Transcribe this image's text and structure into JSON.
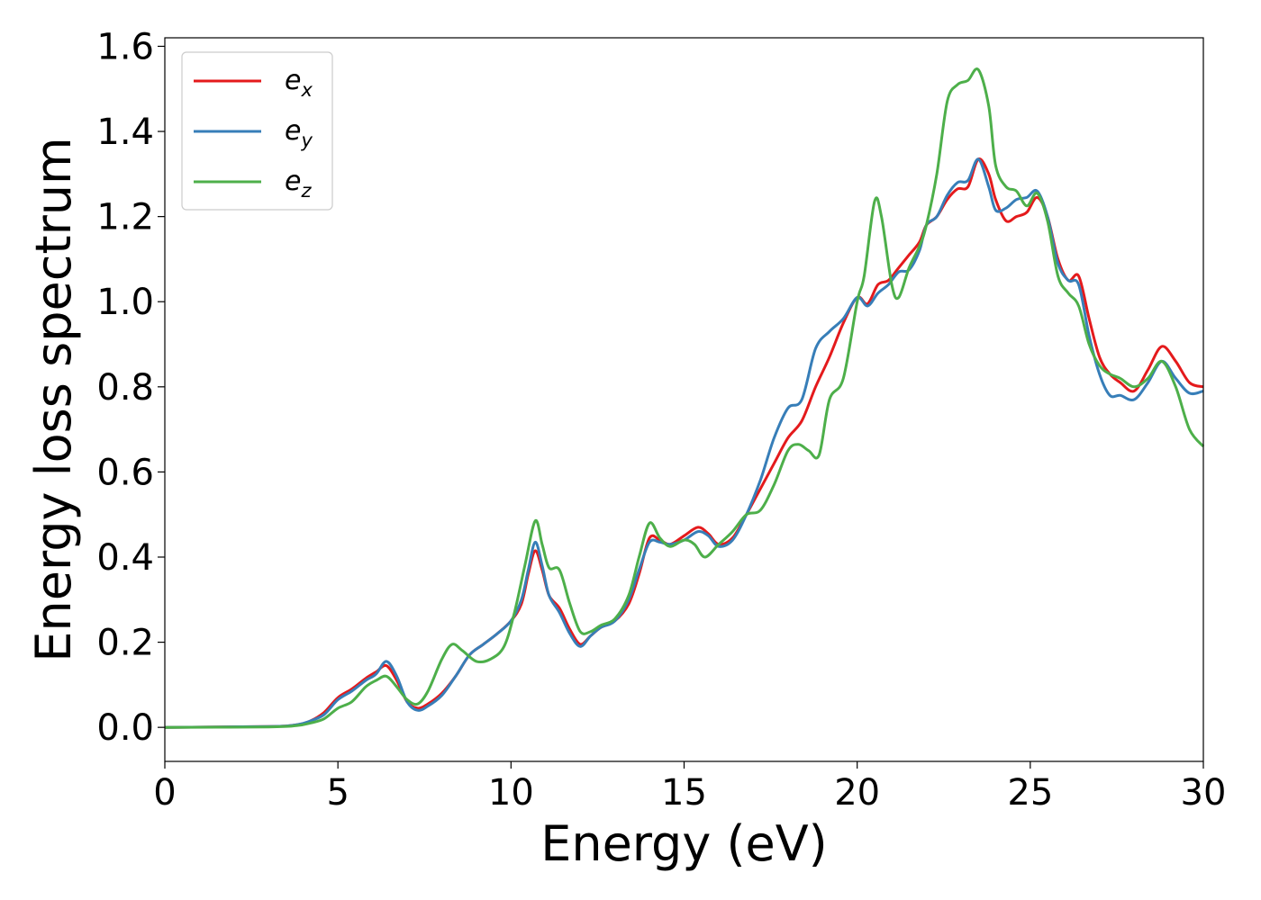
{
  "chart_data": {
    "type": "line",
    "title": "",
    "xlabel": "Energy (eV)",
    "ylabel": "Energy loss spectrum",
    "xlim": [
      0,
      30
    ],
    "ylim": [
      -0.08,
      1.62
    ],
    "xticks": [
      0,
      5,
      10,
      15,
      20,
      25,
      30
    ],
    "yticks": [
      0.0,
      0.2,
      0.4,
      0.6,
      0.8,
      1.0,
      1.2,
      1.4,
      1.6
    ],
    "ytick_labels": [
      "0.0",
      "0.2",
      "0.4",
      "0.6",
      "0.8",
      "1.0",
      "1.2",
      "1.4",
      "1.6"
    ],
    "grid": false,
    "legend_position": "top-left",
    "series": [
      {
        "name": "e_x",
        "label_base": "e",
        "label_sub": "x",
        "color": "#e41a1c",
        "points": [
          [
            0,
            0.0
          ],
          [
            3,
            0.002
          ],
          [
            3.8,
            0.006
          ],
          [
            4.2,
            0.015
          ],
          [
            4.6,
            0.035
          ],
          [
            5.0,
            0.07
          ],
          [
            5.4,
            0.09
          ],
          [
            5.8,
            0.115
          ],
          [
            6.1,
            0.13
          ],
          [
            6.4,
            0.145
          ],
          [
            6.7,
            0.11
          ],
          [
            7.0,
            0.06
          ],
          [
            7.3,
            0.045
          ],
          [
            7.6,
            0.055
          ],
          [
            8.0,
            0.08
          ],
          [
            8.4,
            0.12
          ],
          [
            8.8,
            0.17
          ],
          [
            9.2,
            0.195
          ],
          [
            9.6,
            0.22
          ],
          [
            10.0,
            0.25
          ],
          [
            10.3,
            0.29
          ],
          [
            10.5,
            0.36
          ],
          [
            10.7,
            0.415
          ],
          [
            10.9,
            0.37
          ],
          [
            11.1,
            0.31
          ],
          [
            11.4,
            0.28
          ],
          [
            11.7,
            0.23
          ],
          [
            12.0,
            0.195
          ],
          [
            12.3,
            0.215
          ],
          [
            12.6,
            0.235
          ],
          [
            13.0,
            0.25
          ],
          [
            13.4,
            0.29
          ],
          [
            13.7,
            0.36
          ],
          [
            14.0,
            0.445
          ],
          [
            14.3,
            0.44
          ],
          [
            14.6,
            0.43
          ],
          [
            15.0,
            0.45
          ],
          [
            15.4,
            0.47
          ],
          [
            15.7,
            0.455
          ],
          [
            16.0,
            0.43
          ],
          [
            16.4,
            0.445
          ],
          [
            16.8,
            0.5
          ],
          [
            17.2,
            0.56
          ],
          [
            17.6,
            0.62
          ],
          [
            18.0,
            0.68
          ],
          [
            18.4,
            0.72
          ],
          [
            18.8,
            0.8
          ],
          [
            19.2,
            0.87
          ],
          [
            19.6,
            0.95
          ],
          [
            20.0,
            1.01
          ],
          [
            20.3,
            0.995
          ],
          [
            20.6,
            1.04
          ],
          [
            20.9,
            1.05
          ],
          [
            21.2,
            1.08
          ],
          [
            21.5,
            1.11
          ],
          [
            21.8,
            1.14
          ],
          [
            22.0,
            1.18
          ],
          [
            22.3,
            1.2
          ],
          [
            22.6,
            1.24
          ],
          [
            22.9,
            1.265
          ],
          [
            23.2,
            1.27
          ],
          [
            23.5,
            1.335
          ],
          [
            23.8,
            1.3
          ],
          [
            24.0,
            1.24
          ],
          [
            24.3,
            1.19
          ],
          [
            24.6,
            1.2
          ],
          [
            24.9,
            1.21
          ],
          [
            25.2,
            1.245
          ],
          [
            25.5,
            1.2
          ],
          [
            25.8,
            1.1
          ],
          [
            26.1,
            1.05
          ],
          [
            26.4,
            1.06
          ],
          [
            26.7,
            0.96
          ],
          [
            27.0,
            0.87
          ],
          [
            27.3,
            0.83
          ],
          [
            27.6,
            0.81
          ],
          [
            28.0,
            0.79
          ],
          [
            28.4,
            0.84
          ],
          [
            28.8,
            0.895
          ],
          [
            29.2,
            0.86
          ],
          [
            29.6,
            0.81
          ],
          [
            30.0,
            0.8
          ]
        ]
      },
      {
        "name": "e_y",
        "label_base": "e",
        "label_sub": "y",
        "color": "#377eb8",
        "points": [
          [
            0,
            0.0
          ],
          [
            3,
            0.002
          ],
          [
            3.8,
            0.006
          ],
          [
            4.2,
            0.015
          ],
          [
            4.6,
            0.03
          ],
          [
            5.0,
            0.065
          ],
          [
            5.4,
            0.085
          ],
          [
            5.8,
            0.11
          ],
          [
            6.1,
            0.125
          ],
          [
            6.4,
            0.155
          ],
          [
            6.7,
            0.12
          ],
          [
            7.0,
            0.06
          ],
          [
            7.3,
            0.04
          ],
          [
            7.6,
            0.05
          ],
          [
            8.0,
            0.075
          ],
          [
            8.4,
            0.12
          ],
          [
            8.8,
            0.17
          ],
          [
            9.2,
            0.195
          ],
          [
            9.6,
            0.22
          ],
          [
            10.0,
            0.25
          ],
          [
            10.3,
            0.3
          ],
          [
            10.5,
            0.37
          ],
          [
            10.7,
            0.435
          ],
          [
            10.9,
            0.38
          ],
          [
            11.1,
            0.31
          ],
          [
            11.4,
            0.27
          ],
          [
            11.7,
            0.22
          ],
          [
            12.0,
            0.19
          ],
          [
            12.3,
            0.215
          ],
          [
            12.6,
            0.235
          ],
          [
            13.0,
            0.25
          ],
          [
            13.4,
            0.3
          ],
          [
            13.7,
            0.37
          ],
          [
            14.0,
            0.435
          ],
          [
            14.3,
            0.435
          ],
          [
            14.6,
            0.43
          ],
          [
            15.0,
            0.44
          ],
          [
            15.4,
            0.46
          ],
          [
            15.7,
            0.45
          ],
          [
            16.0,
            0.425
          ],
          [
            16.4,
            0.44
          ],
          [
            16.8,
            0.5
          ],
          [
            17.2,
            0.58
          ],
          [
            17.6,
            0.68
          ],
          [
            18.0,
            0.75
          ],
          [
            18.4,
            0.77
          ],
          [
            18.8,
            0.89
          ],
          [
            19.2,
            0.93
          ],
          [
            19.6,
            0.96
          ],
          [
            20.0,
            1.01
          ],
          [
            20.3,
            0.99
          ],
          [
            20.6,
            1.02
          ],
          [
            20.9,
            1.04
          ],
          [
            21.2,
            1.07
          ],
          [
            21.5,
            1.075
          ],
          [
            21.8,
            1.12
          ],
          [
            22.0,
            1.18
          ],
          [
            22.3,
            1.2
          ],
          [
            22.6,
            1.25
          ],
          [
            22.9,
            1.28
          ],
          [
            23.2,
            1.285
          ],
          [
            23.5,
            1.335
          ],
          [
            23.8,
            1.27
          ],
          [
            24.0,
            1.215
          ],
          [
            24.3,
            1.22
          ],
          [
            24.6,
            1.24
          ],
          [
            24.9,
            1.245
          ],
          [
            25.2,
            1.26
          ],
          [
            25.5,
            1.2
          ],
          [
            25.8,
            1.09
          ],
          [
            26.1,
            1.05
          ],
          [
            26.4,
            1.04
          ],
          [
            26.7,
            0.92
          ],
          [
            27.0,
            0.83
          ],
          [
            27.3,
            0.78
          ],
          [
            27.6,
            0.78
          ],
          [
            28.0,
            0.77
          ],
          [
            28.4,
            0.81
          ],
          [
            28.8,
            0.86
          ],
          [
            29.2,
            0.82
          ],
          [
            29.6,
            0.785
          ],
          [
            30.0,
            0.79
          ]
        ]
      },
      {
        "name": "e_z",
        "label_base": "e",
        "label_sub": "z",
        "color": "#4daf4a",
        "points": [
          [
            0,
            0.0
          ],
          [
            3,
            0.001
          ],
          [
            3.8,
            0.004
          ],
          [
            4.2,
            0.01
          ],
          [
            4.6,
            0.02
          ],
          [
            5.0,
            0.045
          ],
          [
            5.4,
            0.06
          ],
          [
            5.8,
            0.095
          ],
          [
            6.1,
            0.11
          ],
          [
            6.4,
            0.12
          ],
          [
            6.7,
            0.095
          ],
          [
            7.0,
            0.065
          ],
          [
            7.3,
            0.055
          ],
          [
            7.6,
            0.085
          ],
          [
            8.0,
            0.16
          ],
          [
            8.3,
            0.195
          ],
          [
            8.6,
            0.18
          ],
          [
            9.0,
            0.155
          ],
          [
            9.4,
            0.16
          ],
          [
            9.8,
            0.19
          ],
          [
            10.1,
            0.27
          ],
          [
            10.4,
            0.38
          ],
          [
            10.7,
            0.485
          ],
          [
            10.9,
            0.43
          ],
          [
            11.1,
            0.375
          ],
          [
            11.4,
            0.37
          ],
          [
            11.7,
            0.29
          ],
          [
            12.0,
            0.225
          ],
          [
            12.3,
            0.225
          ],
          [
            12.6,
            0.24
          ],
          [
            13.0,
            0.255
          ],
          [
            13.4,
            0.31
          ],
          [
            13.7,
            0.4
          ],
          [
            14.0,
            0.48
          ],
          [
            14.3,
            0.445
          ],
          [
            14.6,
            0.425
          ],
          [
            15.0,
            0.44
          ],
          [
            15.3,
            0.43
          ],
          [
            15.6,
            0.4
          ],
          [
            16.0,
            0.43
          ],
          [
            16.4,
            0.46
          ],
          [
            16.8,
            0.5
          ],
          [
            17.2,
            0.51
          ],
          [
            17.6,
            0.57
          ],
          [
            18.0,
            0.65
          ],
          [
            18.3,
            0.665
          ],
          [
            18.6,
            0.65
          ],
          [
            18.9,
            0.64
          ],
          [
            19.2,
            0.77
          ],
          [
            19.6,
            0.82
          ],
          [
            20.0,
            1.0
          ],
          [
            20.2,
            1.06
          ],
          [
            20.5,
            1.235
          ],
          [
            20.7,
            1.2
          ],
          [
            21.0,
            1.04
          ],
          [
            21.2,
            1.01
          ],
          [
            21.5,
            1.08
          ],
          [
            21.8,
            1.13
          ],
          [
            22.0,
            1.18
          ],
          [
            22.3,
            1.3
          ],
          [
            22.6,
            1.47
          ],
          [
            22.9,
            1.51
          ],
          [
            23.2,
            1.52
          ],
          [
            23.5,
            1.545
          ],
          [
            23.8,
            1.46
          ],
          [
            24.0,
            1.32
          ],
          [
            24.3,
            1.27
          ],
          [
            24.6,
            1.26
          ],
          [
            24.9,
            1.225
          ],
          [
            25.2,
            1.255
          ],
          [
            25.5,
            1.19
          ],
          [
            25.8,
            1.06
          ],
          [
            26.1,
            1.02
          ],
          [
            26.4,
            0.99
          ],
          [
            26.7,
            0.9
          ],
          [
            27.0,
            0.85
          ],
          [
            27.3,
            0.83
          ],
          [
            27.6,
            0.82
          ],
          [
            28.0,
            0.8
          ],
          [
            28.4,
            0.82
          ],
          [
            28.8,
            0.86
          ],
          [
            29.2,
            0.8
          ],
          [
            29.6,
            0.7
          ],
          [
            30.0,
            0.66
          ]
        ]
      }
    ]
  }
}
